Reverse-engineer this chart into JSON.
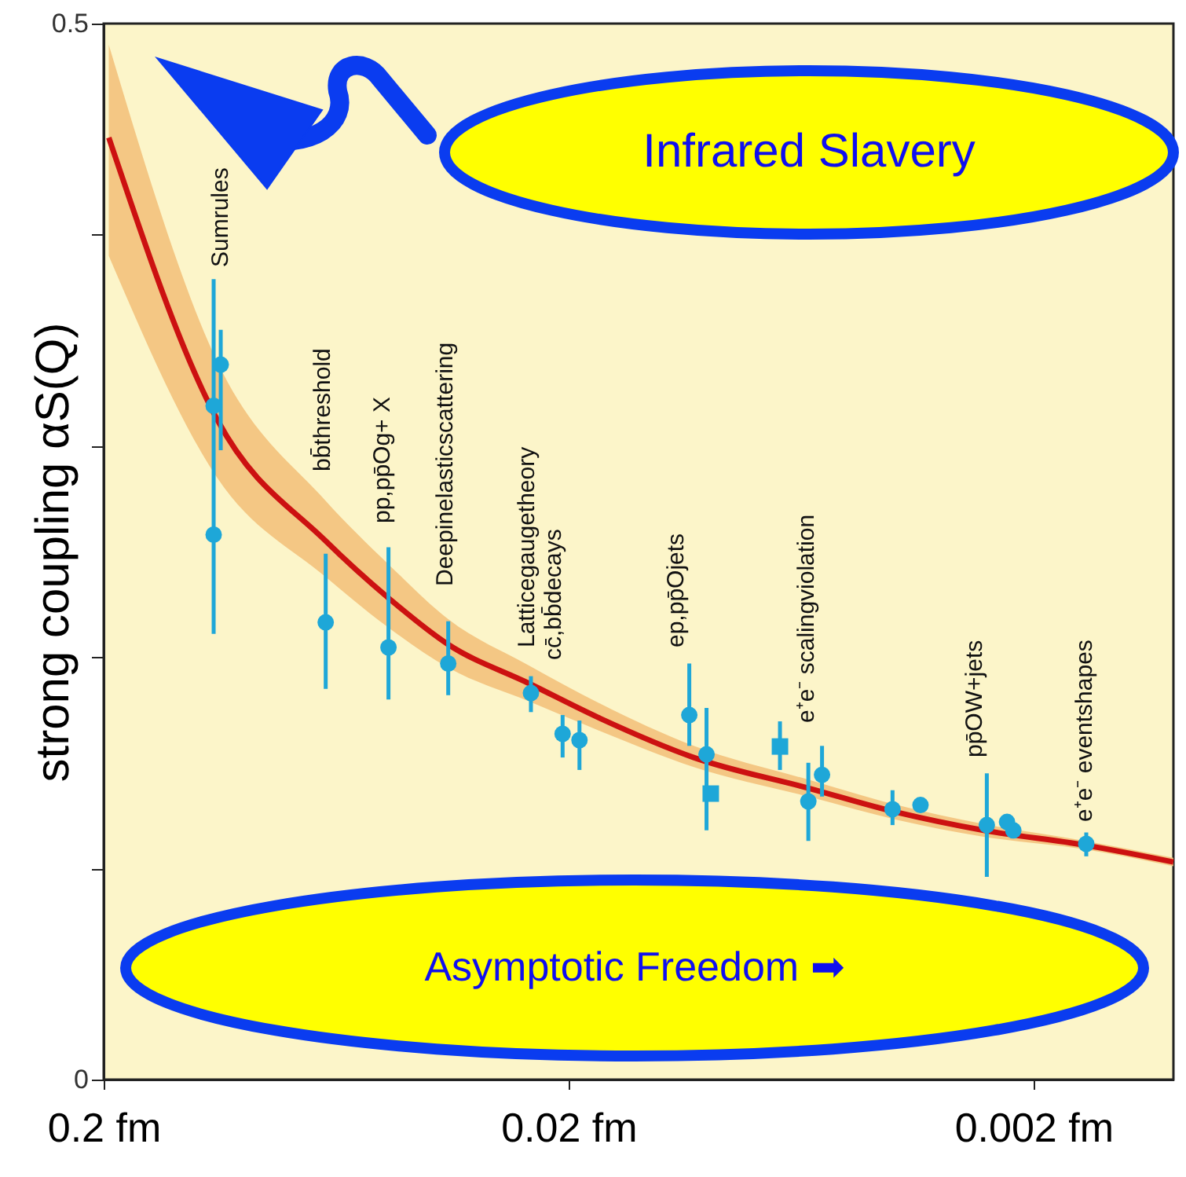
{
  "chart_data": {
    "type": "scatter",
    "ylabel": "strong coupling αS(Q)",
    "xlim": [
      0.2,
      0.001
    ],
    "log": "x",
    "xticks": [
      {
        "value": 0.2,
        "label": "0.2 fm"
      },
      {
        "value": 0.02,
        "label": "0.02 fm"
      },
      {
        "value": 0.002,
        "label": "0.002 fm"
      }
    ],
    "ylim": [
      0,
      0.5
    ],
    "yticks": [
      0,
      {
        "value": 0.1,
        "label": null
      },
      {
        "value": 0.2,
        "label": null
      },
      {
        "value": 0.3,
        "label": null
      },
      {
        "value": 0.4,
        "label": null
      },
      0.5
    ],
    "grid": false,
    "series": [
      {
        "type": "line",
        "color": "#cc1111",
        "line_style": "solid",
        "marker": "none",
        "x": [
          0.195,
          0.114,
          0.0666,
          0.0488,
          0.0363,
          0.0243,
          0.0171,
          0.01076,
          0.0061,
          0.00393,
          0.00256,
          0.00155,
          0.001
        ],
        "values": [
          0.446,
          0.3125,
          0.255,
          0.228,
          0.206,
          0.1875,
          0.171,
          0.1525,
          0.138,
          0.1265,
          0.118,
          0.111,
          0.103
        ],
        "lower": [
          0.39,
          0.285,
          0.238,
          0.214,
          0.195,
          0.179,
          0.165,
          0.148,
          0.134,
          0.123,
          0.115,
          0.109,
          0.101
        ],
        "upper": [
          0.49,
          0.34,
          0.274,
          0.244,
          0.218,
          0.196,
          0.178,
          0.158,
          0.142,
          0.13,
          0.121,
          0.113,
          0.105
        ]
      },
      {
        "color": "#1ea7d8",
        "marker": "circle",
        "x": [
          0.112,
          0.116,
          0.116,
          0.0666,
          0.0488,
          0.0363,
          0.0241,
          0.0206,
          0.011,
          0.0101,
          0.0057,
          0.00252,
          0.00221
        ],
        "values": [
          0.3385,
          0.319,
          0.258,
          0.2165,
          0.2046,
          0.197,
          0.183,
          0.1637,
          0.1726,
          0.154,
          0.1443,
          0.1205,
          0.118
        ],
        "errors": [
          [
            0.298,
            0.355
          ],
          null,
          [
            0.211,
            0.379
          ],
          [
            0.185,
            0.249
          ],
          [
            0.18,
            0.252
          ],
          [
            0.182,
            0.217
          ],
          [
            0.174,
            0.191
          ],
          [
            0.1525,
            0.1726
          ],
          [
            0.158,
            0.197
          ],
          [
            0.118,
            0.176
          ],
          [
            0.134,
            0.158
          ],
          [
            0.096,
            0.145
          ],
          null
        ]
      },
      {
        "color": "#1ea7d8",
        "marker": "circle",
        "x": [
          0.01895,
          0.0061,
          0.00402,
          0.0035,
          0.00228,
          0.00154
        ],
        "values": [
          0.1607,
          0.1317,
          0.128,
          0.13,
          0.122,
          0.1116
        ],
        "errors": [
          [
            0.1466,
            0.17
          ],
          [
            0.113,
            0.15
          ],
          [
            0.1205,
            0.137
          ],
          null,
          null,
          [
            0.1057,
            0.117
          ]
        ]
      },
      {
        "color": "#1ea7d8",
        "marker": "square",
        "x": [
          0.00989,
          0.00702
        ],
        "values": [
          0.1354,
          0.1577
        ],
        "errors": [
          null,
          [
            0.1466,
            0.1696
          ]
        ]
      }
    ],
    "annotations": [
      "Sumrules",
      "bb̄threshold",
      "pp,pp̄Og+ X",
      "Deepinelasticscattering",
      "Latticegaugetheory",
      "cc̄,bb̄decays",
      "ep,pp̄Ojets",
      "e⁺e⁻ scalingviolation",
      "pp̄OW+jets",
      "e⁺e⁻ eventshapes",
      "Infrared Slavery",
      "Asymptotic Freedom ➡"
    ]
  }
}
